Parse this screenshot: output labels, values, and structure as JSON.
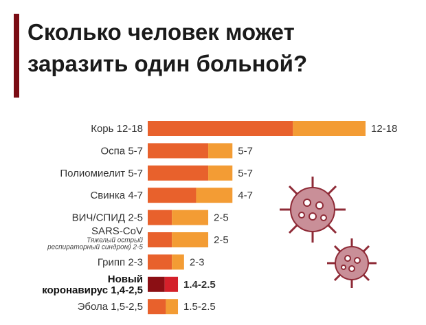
{
  "chart_data": {
    "type": "range_bar",
    "title": "Сколько человек может заразить один больной?",
    "categories": [
      [
        "Корь 12-18"
      ],
      [
        "Оспа 5-7"
      ],
      [
        "Полиомиелит 5-7"
      ],
      [
        "Свинка 4-7"
      ],
      [
        "ВИЧ/СПИД 2-5"
      ],
      [
        "SARS-CoV"
      ],
      [
        "Грипп 2-3"
      ],
      [
        "Новый",
        "коронавирус 1,4-2,5"
      ],
      [
        "Эбола 1,5-2,5"
      ]
    ],
    "notes": [
      [],
      [],
      [],
      [],
      [],
      [
        "Тяжелый острый",
        "респираторный синдром) 2-5"
      ],
      [],
      [],
      []
    ],
    "low": [
      12,
      5,
      5,
      4,
      2,
      2,
      2,
      1.4,
      1.5
    ],
    "high": [
      18,
      7,
      7,
      7,
      5,
      5,
      3,
      2.5,
      2.5
    ],
    "value_labels": [
      "12-18",
      "5-7",
      "5-7",
      "4-7",
      "2-5",
      "2-5",
      "2-3",
      "1.4-2.5",
      "1.5-2.5"
    ],
    "low_color": "#e8612c",
    "high_color": "#f39c34",
    "highlight_index": 7,
    "highlight_low_color": "#8b0f14",
    "highlight_high_color": "#d4202a"
  }
}
